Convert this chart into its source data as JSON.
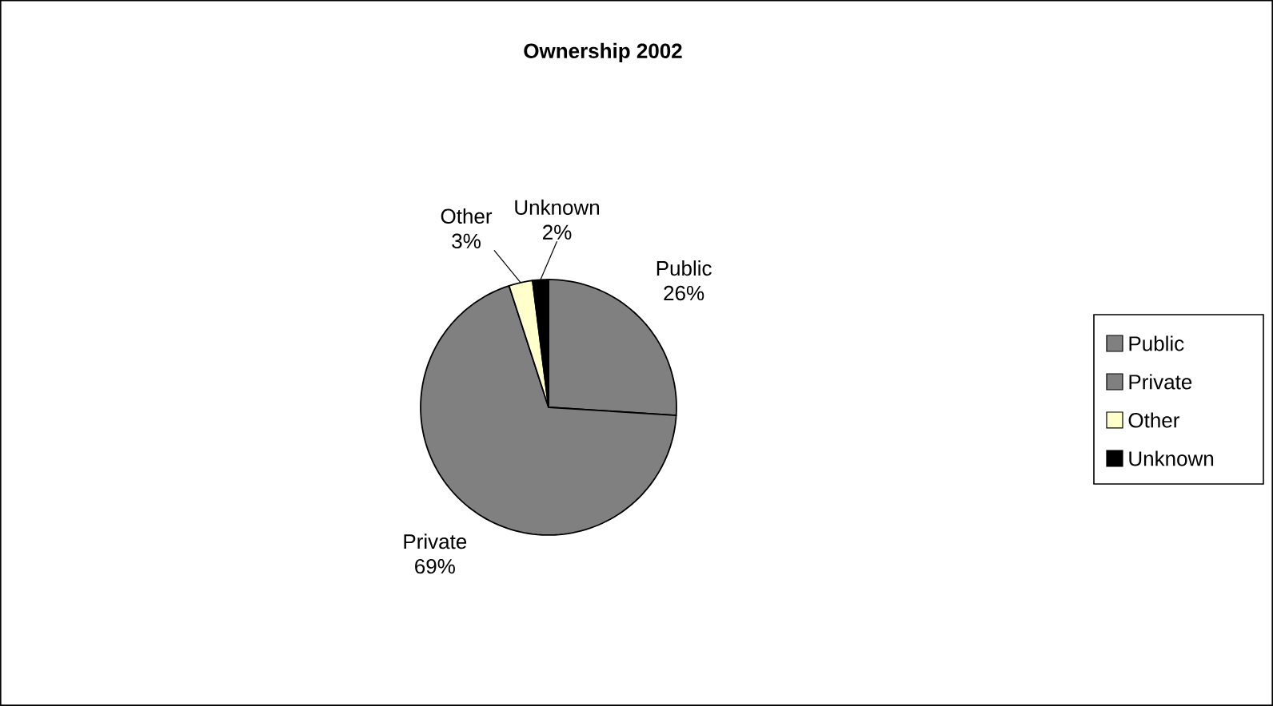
{
  "chart_data": {
    "type": "pie",
    "title": "Ownership 2002",
    "categories": [
      "Public",
      "Private",
      "Other",
      "Unknown"
    ],
    "values": [
      26,
      69,
      3,
      2
    ],
    "value_labels": [
      "26%",
      "69%",
      "3%",
      "2%"
    ],
    "colors": [
      "#808080",
      "#808080",
      "#ffffcc",
      "#000000"
    ],
    "legend": "right"
  }
}
